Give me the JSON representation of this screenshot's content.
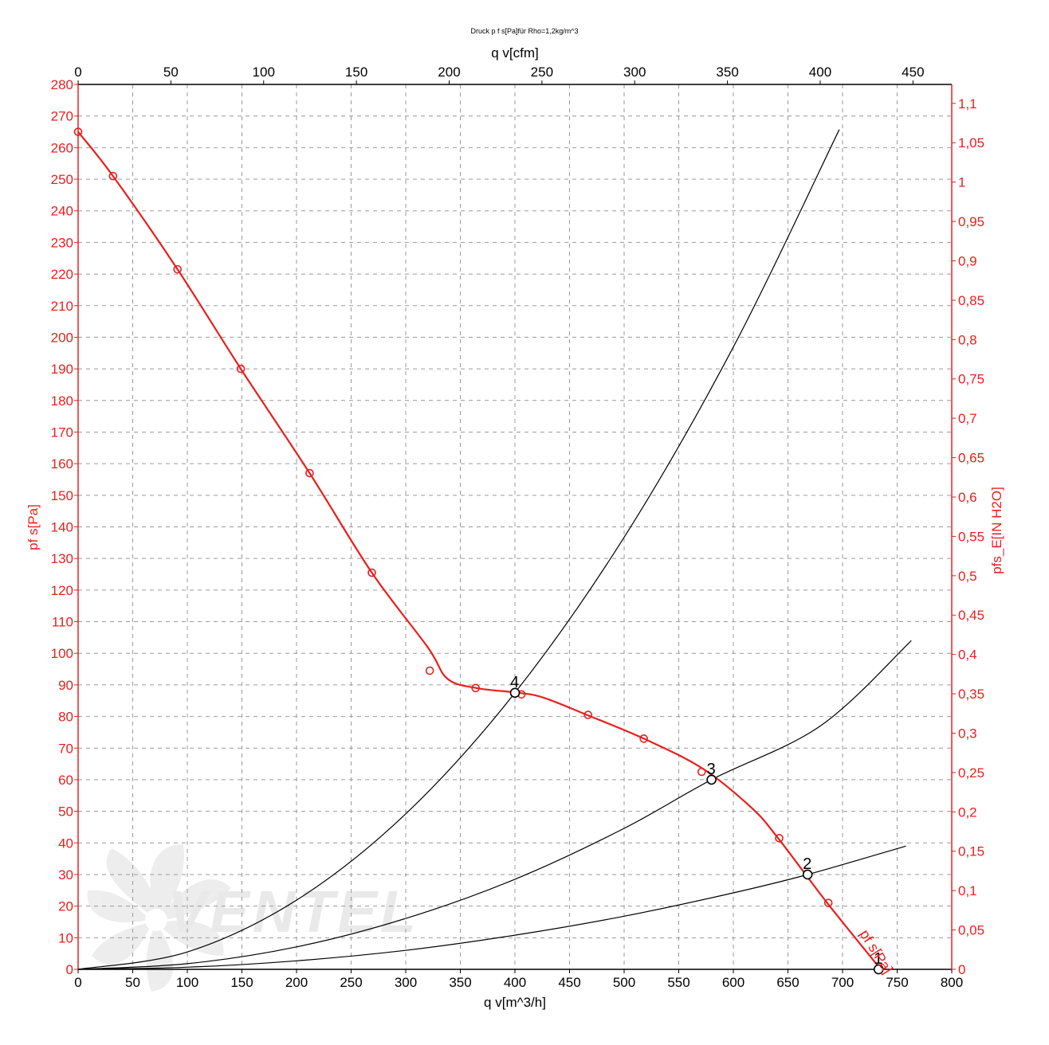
{
  "chart_data": {
    "type": "line",
    "title": "Druck p f s[Pa]für Rho=1,2kg/m^3",
    "xlabel": "q v[m^3/h]",
    "x2label": "q v[cfm]",
    "ylabel": "pf s[Pa]",
    "y2label": "pfs_E[IN H2O]",
    "xlim": [
      0,
      800
    ],
    "x2lim": [
      0,
      470.9
    ],
    "ylim": [
      0,
      280
    ],
    "y2lim": [
      0,
      1.1241
    ],
    "grid": true,
    "x_ticks": [
      "0",
      "50",
      "100",
      "150",
      "200",
      "250",
      "300",
      "350",
      "400",
      "450",
      "500",
      "550",
      "600",
      "650",
      "700",
      "750",
      "800"
    ],
    "x2_ticks": [
      "0",
      "50",
      "100",
      "150",
      "200",
      "250",
      "300",
      "350",
      "400",
      "450"
    ],
    "y_ticks": [
      "0",
      "10",
      "20",
      "30",
      "40",
      "50",
      "60",
      "70",
      "80",
      "90",
      "100",
      "110",
      "120",
      "130",
      "140",
      "150",
      "160",
      "170",
      "180",
      "190",
      "200",
      "210",
      "220",
      "230",
      "240",
      "250",
      "260",
      "270",
      "280"
    ],
    "y2_ticks": [
      "0",
      "0,05",
      "0,1",
      "0,15",
      "0,2",
      "0,25",
      "0,3",
      "0,35",
      "0,4",
      "0,45",
      "0,5",
      "0,55",
      "0,6",
      "0,65",
      "0,7",
      "0,75",
      "0,8",
      "0,85",
      "0,9",
      "0,95",
      "1",
      "1,05",
      "1,1"
    ],
    "fan_curve": {
      "name": "pf s[Pa]",
      "color": "#e8201e",
      "x": [
        0,
        32,
        91,
        149,
        212,
        269,
        320,
        338,
        365,
        403,
        426,
        466,
        518,
        572,
        617,
        641,
        686,
        735
      ],
      "y": [
        265,
        251,
        221.5,
        190,
        157,
        125.5,
        102,
        92,
        89,
        87.5,
        86,
        80.5,
        73,
        63.5,
        51,
        41.5,
        21,
        0
      ]
    },
    "fan_markers": {
      "x": [
        0,
        32,
        91,
        149,
        212,
        269,
        322,
        364,
        406,
        467,
        518,
        571,
        642,
        687
      ],
      "y": [
        265,
        251,
        221.5,
        190,
        157,
        125.5,
        94.5,
        89,
        87,
        80.5,
        73,
        62.5,
        41.5,
        21
      ]
    },
    "system_curves": [
      {
        "x": [
          0,
          100,
          200,
          300,
          400,
          500,
          600,
          697
        ],
        "y": [
          0,
          5.5,
          21.9,
          49.2,
          87.5,
          136.7,
          196.9,
          265.7
        ],
        "color": "#000000"
      },
      {
        "x": [
          0,
          100,
          200,
          300,
          400,
          500,
          580,
          680,
          763
        ],
        "y": [
          0,
          1.8,
          7.1,
          16.1,
          28.5,
          44.6,
          60,
          77.1,
          104
        ],
        "color": "#000000"
      },
      {
        "x": [
          0,
          100,
          200,
          300,
          400,
          500,
          600,
          668,
          758
        ],
        "y": [
          0,
          0.67,
          2.7,
          6,
          10.8,
          16.8,
          24.2,
          30,
          39
        ],
        "color": "#000000"
      }
    ],
    "operating_points": [
      {
        "label": "1",
        "x": 733,
        "y": 0
      },
      {
        "label": "2",
        "x": 668,
        "y": 30
      },
      {
        "label": "3",
        "x": 580,
        "y": 60
      },
      {
        "label": "4",
        "x": 400,
        "y": 87.5
      }
    ],
    "watermark": "VENTEL"
  }
}
